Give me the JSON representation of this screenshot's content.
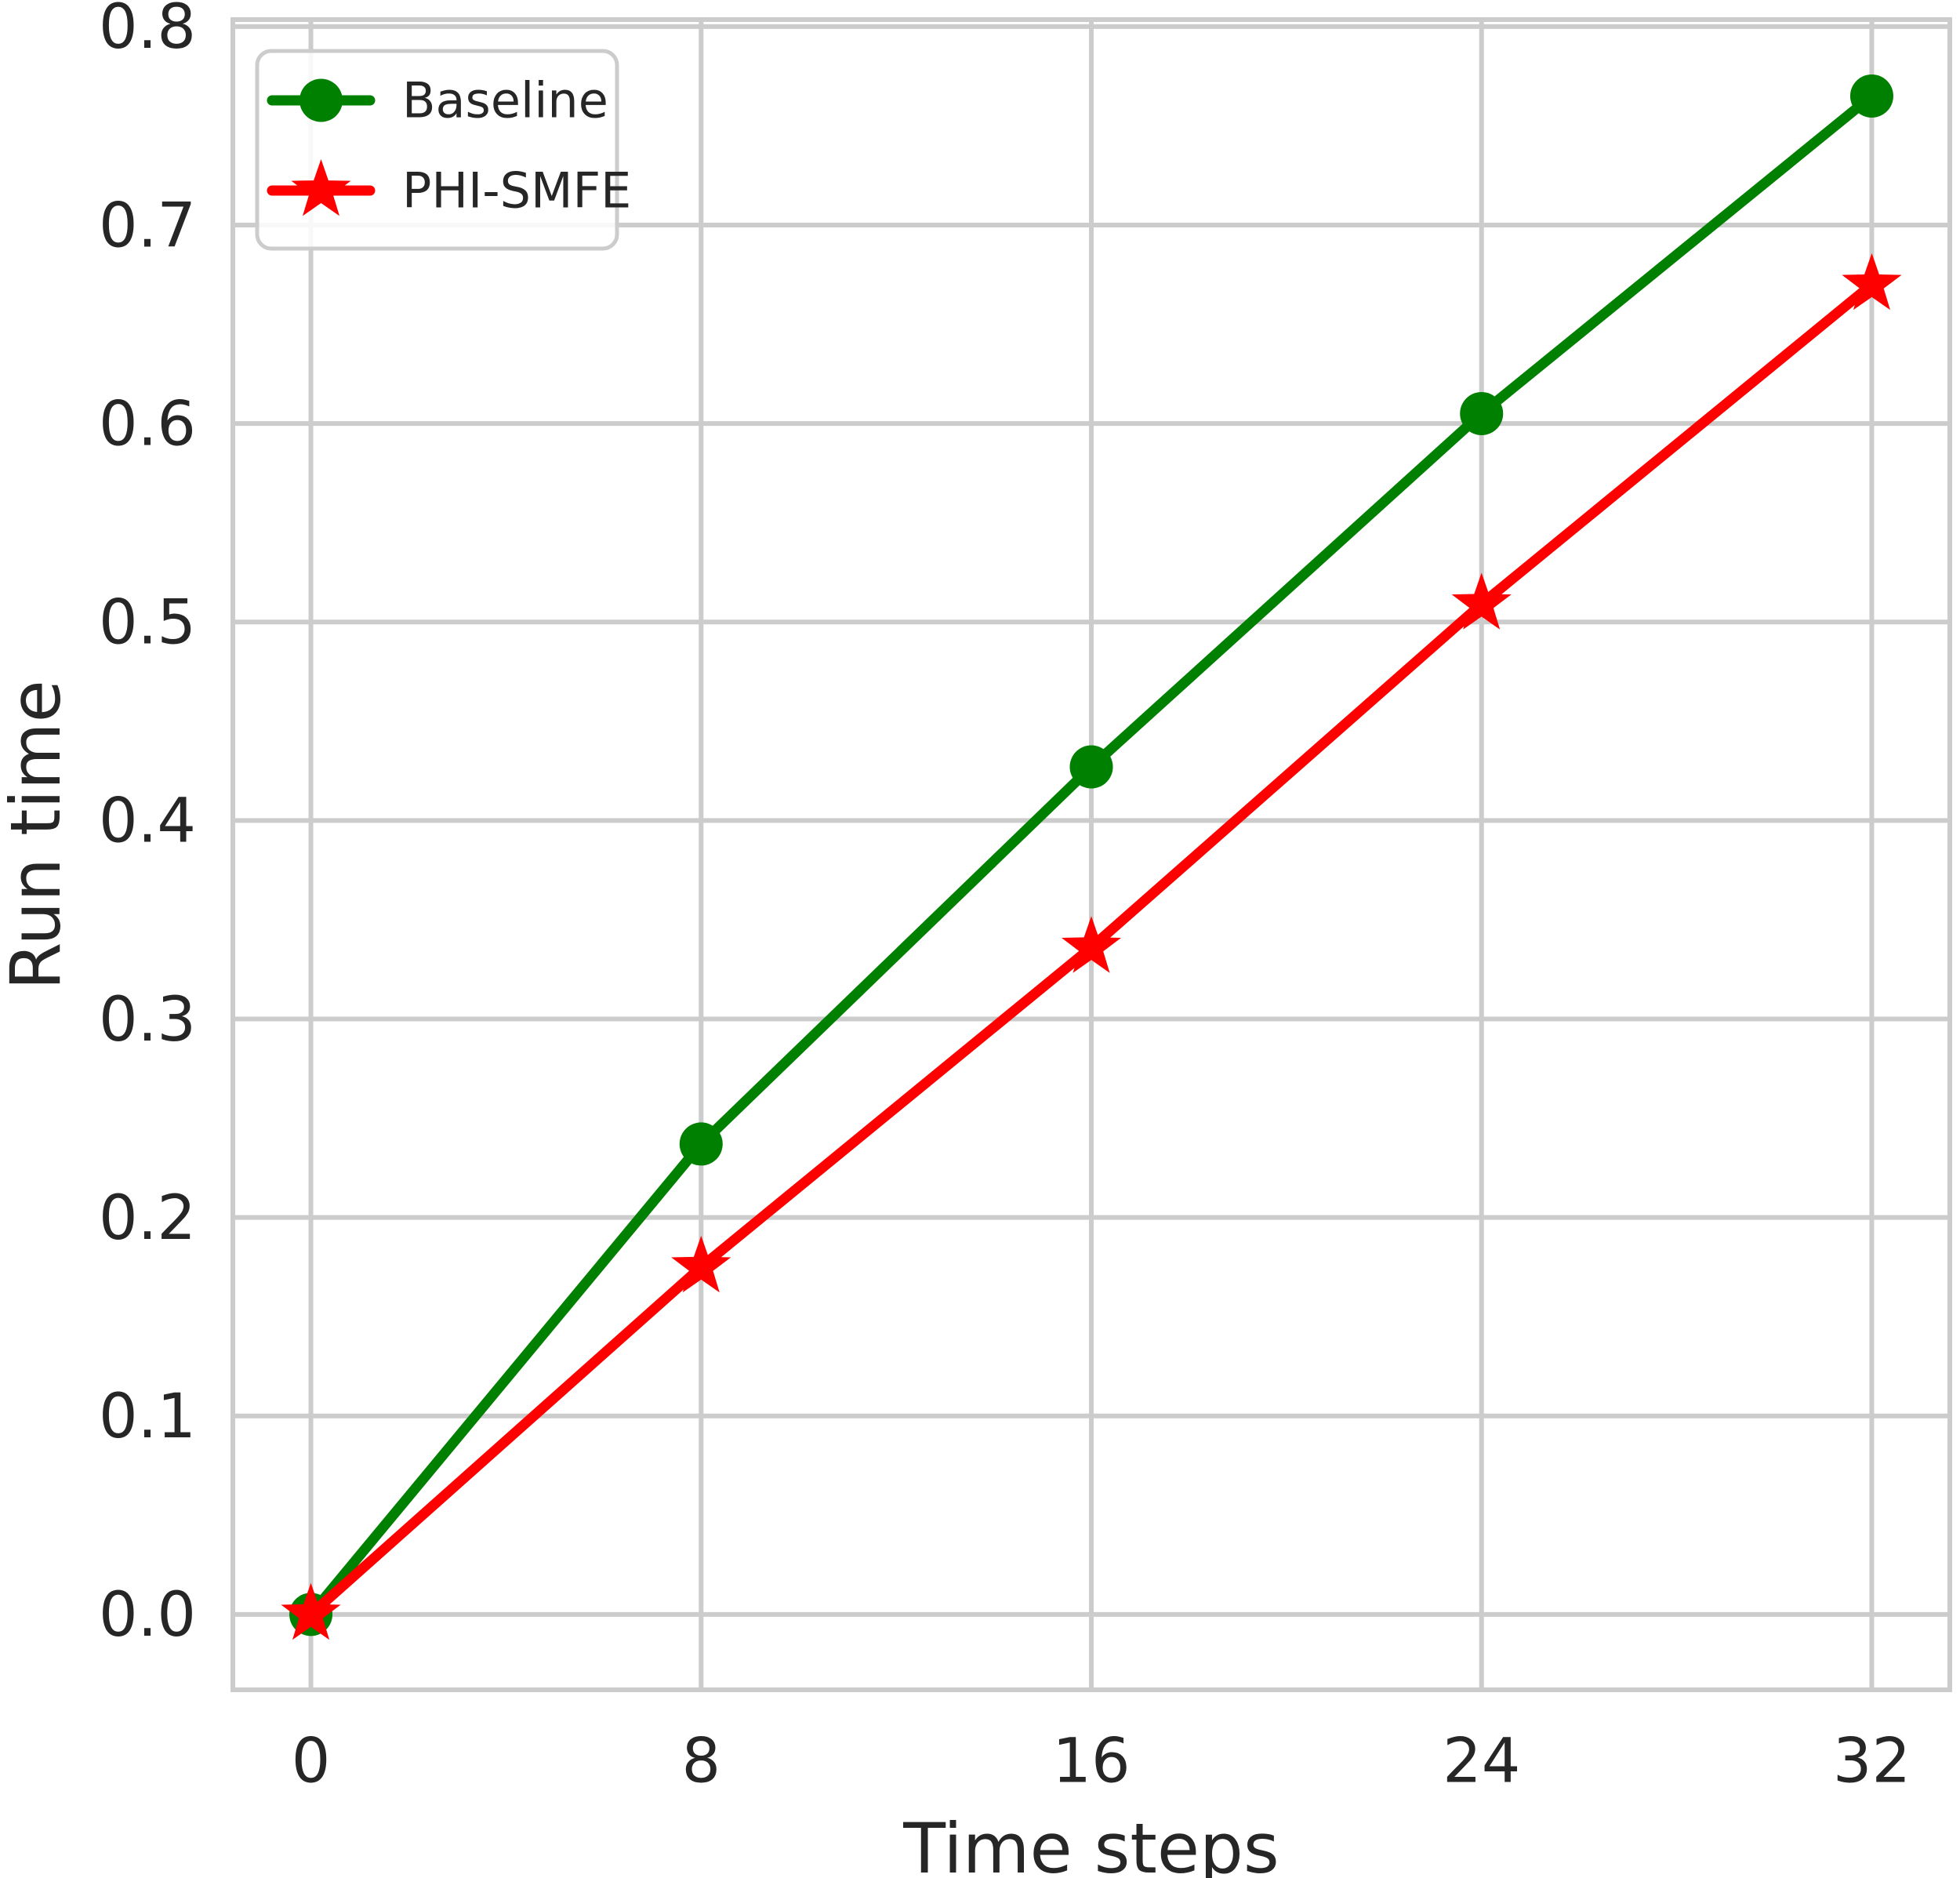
{
  "figure": {
    "background": "#ffffff",
    "text_color": "#262626",
    "grid_color": "#cccccc",
    "spine_color": "#cccccc",
    "legend_border_color": "#cccccc"
  },
  "chart_data": {
    "type": "line",
    "title": "",
    "xlabel": "Time steps",
    "ylabel": "Run time",
    "x": [
      0,
      8,
      16,
      24,
      32
    ],
    "series": [
      {
        "name": "Baseline",
        "color": "#008000",
        "marker": "circle",
        "values": [
          0.0,
          0.237,
          0.427,
          0.605,
          0.765
        ]
      },
      {
        "name": "PHI-SMFE",
        "color": "#ff0000",
        "marker": "star",
        "values": [
          0.0,
          0.175,
          0.336,
          0.509,
          0.67
        ]
      }
    ],
    "xticks": {
      "values": [
        0,
        8,
        16,
        24,
        32
      ],
      "labels": [
        "0",
        "8",
        "16",
        "24",
        "32"
      ]
    },
    "yticks": {
      "values": [
        0.0,
        0.1,
        0.2,
        0.3,
        0.4,
        0.5,
        0.6,
        0.7,
        0.8
      ],
      "labels": [
        "0.0",
        "0.1",
        "0.2",
        "0.3",
        "0.4",
        "0.5",
        "0.6",
        "0.7",
        "0.8"
      ]
    },
    "xlim": [
      -1.6,
      33.6
    ],
    "ylim": [
      -0.038,
      0.8035
    ],
    "grid": true,
    "legend": {
      "position": "upper left"
    }
  }
}
